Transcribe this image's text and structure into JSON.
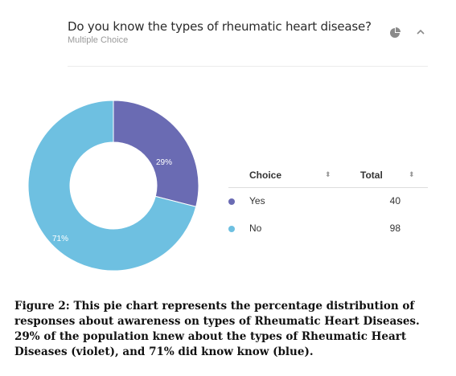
{
  "question": {
    "title": "Do you know the types of rheumatic heart disease?",
    "type": "Multiple Choice",
    "icons": [
      "pie-chart-icon",
      "chevron-up-icon"
    ]
  },
  "table": {
    "col_choice": "Choice",
    "col_total": "Total",
    "rows": [
      {
        "label": "Yes",
        "total": "40",
        "color": "#6a6bb3"
      },
      {
        "label": "No",
        "total": "98",
        "color": "#6ec0e1"
      }
    ]
  },
  "chart_data": {
    "type": "pie",
    "style": "donut",
    "categories": [
      "Yes",
      "No"
    ],
    "values": [
      40,
      98
    ],
    "data_labels": [
      "29%",
      "71%"
    ],
    "colors": [
      "#6a6bb3",
      "#6ec0e1"
    ]
  },
  "caption": "Figure 2: This pie chart represents the percentage distribution of responses about awareness on types of Rheumatic Heart Diseases. 29% of the population knew about the types of Rheumatic Heart Diseases (violet), and 71% did know know (blue)."
}
